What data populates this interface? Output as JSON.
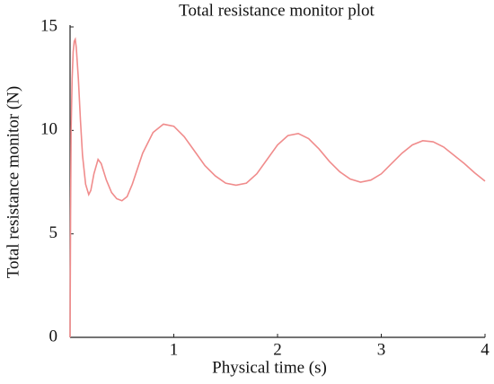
{
  "chart_data": {
    "type": "line",
    "title": "Total resistance monitor plot",
    "x_label": "Physical time (s)",
    "y_label": "Total resistance monitor (N)",
    "x": [
      0,
      0.005,
      0.01,
      0.02,
      0.03,
      0.04,
      0.05,
      0.06,
      0.08,
      0.1,
      0.12,
      0.15,
      0.18,
      0.2,
      0.23,
      0.27,
      0.3,
      0.35,
      0.4,
      0.45,
      0.5,
      0.55,
      0.6,
      0.7,
      0.8,
      0.9,
      1.0,
      1.1,
      1.2,
      1.3,
      1.4,
      1.5,
      1.6,
      1.7,
      1.8,
      1.9,
      2.0,
      2.1,
      2.2,
      2.3,
      2.4,
      2.5,
      2.6,
      2.7,
      2.8,
      2.9,
      3.0,
      3.1,
      3.2,
      3.3,
      3.4,
      3.5,
      3.6,
      3.7,
      3.8,
      3.9,
      4.0
    ],
    "series": [
      {
        "name": "Total resistance monitor",
        "color": "#f08c8c",
        "values": [
          0,
          6,
          10,
          12.5,
          13.8,
          14.3,
          14.4,
          14.0,
          12.5,
          10.5,
          8.8,
          7.4,
          6.9,
          7.1,
          7.9,
          8.6,
          8.4,
          7.6,
          7.0,
          6.7,
          6.6,
          6.8,
          7.4,
          8.9,
          9.9,
          10.3,
          10.2,
          9.7,
          9.0,
          8.3,
          7.8,
          7.45,
          7.35,
          7.45,
          7.9,
          8.6,
          9.3,
          9.75,
          9.85,
          9.6,
          9.1,
          8.5,
          8.0,
          7.65,
          7.5,
          7.6,
          7.9,
          8.4,
          8.9,
          9.3,
          9.5,
          9.45,
          9.2,
          8.8,
          8.4,
          7.95,
          7.55
        ]
      }
    ],
    "xlim": [
      0,
      4
    ],
    "xticks": [
      1,
      2,
      3,
      4
    ],
    "ylim": [
      0,
      15
    ],
    "yticks": [
      0,
      5,
      10,
      15
    ],
    "grid": false
  }
}
